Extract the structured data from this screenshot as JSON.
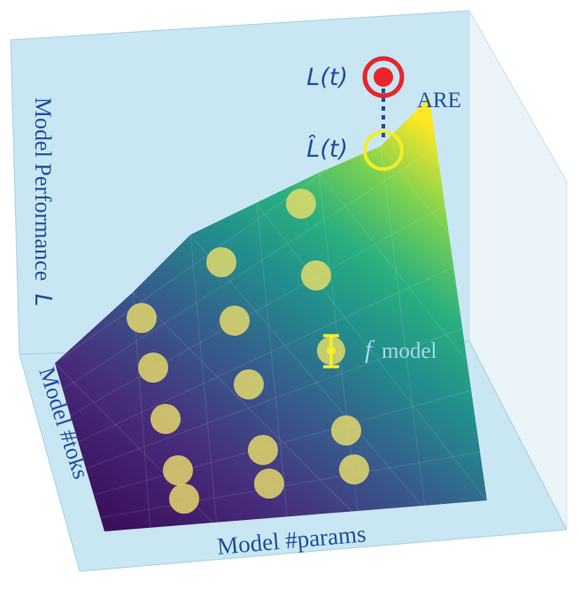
{
  "labels": {
    "y_axis": "Model Performance",
    "y_axis_symbol": "L",
    "z_axis": "Model #toks",
    "x_axis": "Model #params",
    "target": "L(t)",
    "estimate": "L̂(t)",
    "are": "ARE",
    "f_symbol": "f",
    "model": "model"
  },
  "colors": {
    "wall": "#c9e6f3",
    "wall_edge": "#9fcbe0",
    "text": "#1d4f9a",
    "target_red": "#e8242c",
    "estimate_yellow": "#f1ee2a",
    "dot_yellow": "#e9dd6a",
    "dotted_line": "#24478f"
  },
  "surface": {
    "type": "3d-surface",
    "colormap": "viridis"
  }
}
